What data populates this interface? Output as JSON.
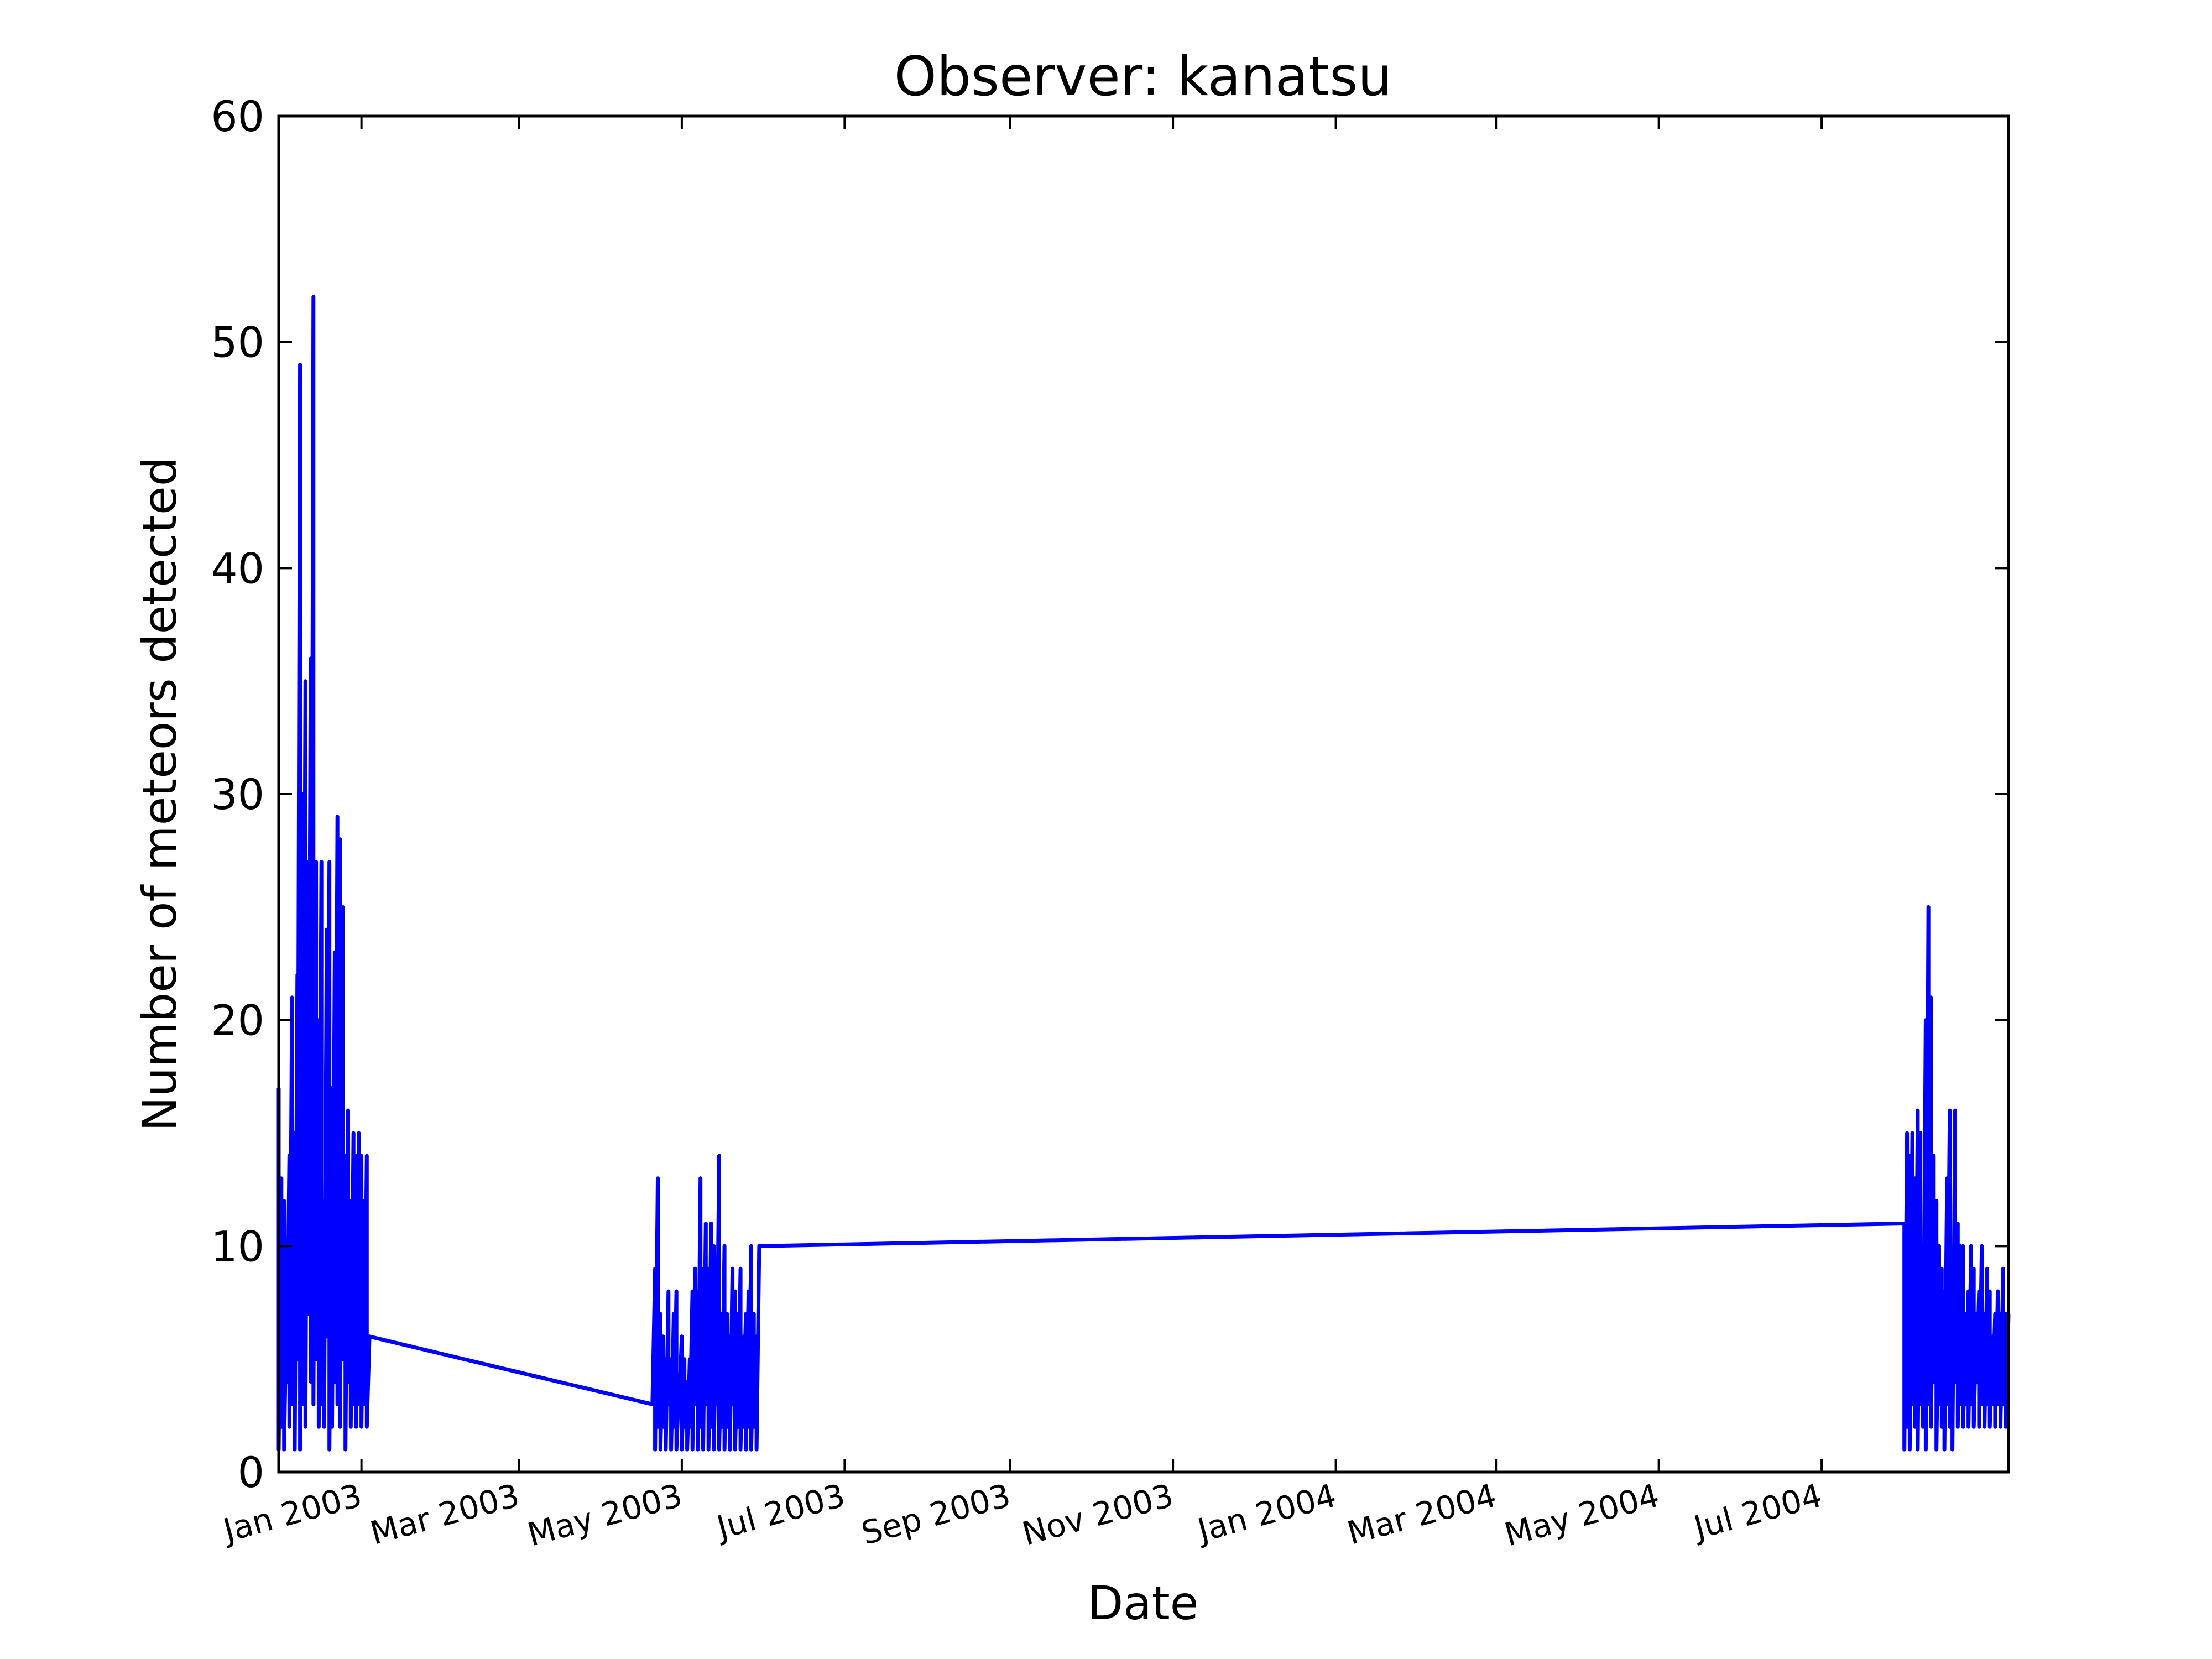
{
  "chart_data": {
    "type": "line",
    "title": "Observer: kanatsu",
    "xlabel": "Date",
    "ylabel": "Number of meteors detected",
    "x_axis_type": "date",
    "xlim": [
      "2002-12-01",
      "2004-09-09"
    ],
    "ylim": [
      0,
      60
    ],
    "yticks": [
      0,
      10,
      20,
      30,
      40,
      50,
      60
    ],
    "xticks": [
      {
        "date": "2003-01-01",
        "label": "Jan 2003"
      },
      {
        "date": "2003-03-01",
        "label": "Mar 2003"
      },
      {
        "date": "2003-05-01",
        "label": "May 2003"
      },
      {
        "date": "2003-07-01",
        "label": "Jul 2003"
      },
      {
        "date": "2003-09-01",
        "label": "Sep 2003"
      },
      {
        "date": "2003-11-01",
        "label": "Nov 2003"
      },
      {
        "date": "2004-01-01",
        "label": "Jan 2004"
      },
      {
        "date": "2004-03-01",
        "label": "Mar 2004"
      },
      {
        "date": "2004-05-01",
        "label": "May 2004"
      },
      {
        "date": "2004-07-01",
        "label": "Jul 2004"
      }
    ],
    "grid": false,
    "legend": "none",
    "line_color": "#0000ff",
    "series": [
      {
        "x": [
          "2002-12-01",
          "2002-12-01",
          "2002-12-02",
          "2002-12-02",
          "2002-12-03",
          "2002-12-03",
          "2002-12-04",
          "2002-12-04",
          "2002-12-05",
          "2002-12-05",
          "2002-12-06",
          "2002-12-06",
          "2002-12-07",
          "2002-12-07",
          "2002-12-08",
          "2002-12-08",
          "2002-12-09",
          "2002-12-09",
          "2002-12-10",
          "2002-12-10",
          "2002-12-11",
          "2002-12-11",
          "2002-12-12",
          "2002-12-12",
          "2002-12-13",
          "2002-12-13",
          "2002-12-14",
          "2002-12-14",
          "2002-12-15",
          "2002-12-15",
          "2002-12-16",
          "2002-12-16",
          "2002-12-17",
          "2002-12-17",
          "2002-12-18",
          "2002-12-18",
          "2002-12-19",
          "2002-12-19",
          "2002-12-20",
          "2002-12-20",
          "2002-12-21",
          "2002-12-21",
          "2002-12-22",
          "2002-12-22",
          "2002-12-23",
          "2002-12-23",
          "2002-12-24",
          "2002-12-24",
          "2002-12-25",
          "2002-12-25",
          "2002-12-26",
          "2002-12-26",
          "2002-12-27",
          "2002-12-27",
          "2002-12-28",
          "2002-12-28",
          "2002-12-29",
          "2002-12-29",
          "2002-12-30",
          "2002-12-30",
          "2002-12-31",
          "2002-12-31",
          "2003-01-01",
          "2003-01-01",
          "2003-01-02",
          "2003-01-02",
          "2003-01-03",
          "2003-01-03",
          "2003-01-04",
          "2003-04-20",
          "2003-04-21",
          "2003-04-21",
          "2003-04-22",
          "2003-04-22",
          "2003-04-23",
          "2003-04-23",
          "2003-04-24",
          "2003-04-24",
          "2003-04-25",
          "2003-04-25",
          "2003-04-26",
          "2003-04-26",
          "2003-04-27",
          "2003-04-27",
          "2003-04-28",
          "2003-04-28",
          "2003-04-29",
          "2003-04-29",
          "2003-04-30",
          "2003-04-30",
          "2003-05-01",
          "2003-05-01",
          "2003-05-02",
          "2003-05-02",
          "2003-05-03",
          "2003-05-03",
          "2003-05-04",
          "2003-05-04",
          "2003-05-05",
          "2003-05-05",
          "2003-05-06",
          "2003-05-06",
          "2003-05-07",
          "2003-05-07",
          "2003-05-08",
          "2003-05-08",
          "2003-05-09",
          "2003-05-09",
          "2003-05-10",
          "2003-05-10",
          "2003-05-11",
          "2003-05-11",
          "2003-05-12",
          "2003-05-12",
          "2003-05-13",
          "2003-05-13",
          "2003-05-14",
          "2003-05-14",
          "2003-05-15",
          "2003-05-15",
          "2003-05-16",
          "2003-05-16",
          "2003-05-17",
          "2003-05-17",
          "2003-05-18",
          "2003-05-18",
          "2003-05-19",
          "2003-05-19",
          "2003-05-20",
          "2003-05-20",
          "2003-05-21",
          "2003-05-21",
          "2003-05-22",
          "2003-05-22",
          "2003-05-23",
          "2003-05-23",
          "2003-05-24",
          "2003-05-24",
          "2003-05-25",
          "2003-05-25",
          "2003-05-26",
          "2003-05-26",
          "2003-05-27",
          "2003-05-27",
          "2003-05-28",
          "2003-05-28",
          "2003-05-29",
          "2003-05-29",
          "2003-05-30",
          "2004-08-01",
          "2004-08-01",
          "2004-08-02",
          "2004-08-02",
          "2004-08-03",
          "2004-08-03",
          "2004-08-04",
          "2004-08-04",
          "2004-08-05",
          "2004-08-05",
          "2004-08-06",
          "2004-08-06",
          "2004-08-07",
          "2004-08-07",
          "2004-08-08",
          "2004-08-08",
          "2004-08-09",
          "2004-08-09",
          "2004-08-10",
          "2004-08-10",
          "2004-08-11",
          "2004-08-11",
          "2004-08-12",
          "2004-08-12",
          "2004-08-13",
          "2004-08-13",
          "2004-08-14",
          "2004-08-14",
          "2004-08-15",
          "2004-08-15",
          "2004-08-16",
          "2004-08-16",
          "2004-08-17",
          "2004-08-17",
          "2004-08-18",
          "2004-08-18",
          "2004-08-19",
          "2004-08-19",
          "2004-08-20",
          "2004-08-20",
          "2004-08-21",
          "2004-08-21",
          "2004-08-22",
          "2004-08-22",
          "2004-08-23",
          "2004-08-23",
          "2004-08-24",
          "2004-08-24",
          "2004-08-25",
          "2004-08-25",
          "2004-08-26",
          "2004-08-26",
          "2004-08-27",
          "2004-08-27",
          "2004-08-28",
          "2004-08-28",
          "2004-08-29",
          "2004-08-29",
          "2004-08-30",
          "2004-08-30",
          "2004-08-31",
          "2004-08-31",
          "2004-09-01",
          "2004-09-01",
          "2004-09-02",
          "2004-09-02",
          "2004-09-03",
          "2004-09-03",
          "2004-09-04",
          "2004-09-04",
          "2004-09-05",
          "2004-09-05",
          "2004-09-06",
          "2004-09-06",
          "2004-09-07",
          "2004-09-07",
          "2004-09-08",
          "2004-09-08",
          "2004-09-09"
        ],
        "y": [
          17,
          1,
          13,
          2,
          12,
          1,
          8,
          4,
          14,
          2,
          21,
          3,
          15,
          1,
          22,
          5,
          49,
          1,
          30,
          3,
          35,
          2,
          27,
          7,
          36,
          4,
          52,
          3,
          27,
          5,
          20,
          2,
          27,
          3,
          12,
          2,
          24,
          6,
          27,
          1,
          17,
          2,
          23,
          4,
          29,
          3,
          28,
          2,
          25,
          5,
          14,
          1,
          16,
          4,
          12,
          2,
          15,
          3,
          14,
          2,
          15,
          3,
          14,
          2,
          12,
          3,
          14,
          2,
          6,
          3,
          9,
          1,
          13,
          2,
          7,
          1,
          6,
          2,
          5,
          1,
          8,
          3,
          5,
          1,
          7,
          2,
          8,
          1,
          4,
          3,
          6,
          1,
          5,
          2,
          4,
          1,
          5,
          2,
          8,
          1,
          9,
          3,
          8,
          1,
          13,
          2,
          9,
          1,
          11,
          3,
          9,
          1,
          11,
          2,
          10,
          1,
          8,
          3,
          14,
          1,
          7,
          2,
          10,
          1,
          7,
          2,
          6,
          1,
          9,
          3,
          8,
          1,
          7,
          2,
          9,
          1,
          6,
          2,
          7,
          1,
          8,
          2,
          10,
          1,
          7,
          2,
          6,
          1,
          10,
          11,
          1,
          15,
          2,
          14,
          1,
          15,
          3,
          13,
          2,
          16,
          1,
          15,
          3,
          8,
          2,
          20,
          1,
          25,
          3,
          21,
          2,
          14,
          4,
          12,
          1,
          10,
          3,
          9,
          2,
          8,
          1,
          13,
          3,
          16,
          2,
          9,
          1,
          16,
          4,
          11,
          2,
          10,
          3,
          10,
          2,
          7,
          3,
          8,
          2,
          10,
          3,
          9,
          2,
          7,
          4,
          8,
          2,
          10,
          3,
          7,
          2,
          9,
          3,
          8,
          2,
          6,
          3,
          7,
          2,
          8,
          3,
          7,
          2,
          9,
          3,
          7,
          2,
          7
        ]
      }
    ]
  }
}
